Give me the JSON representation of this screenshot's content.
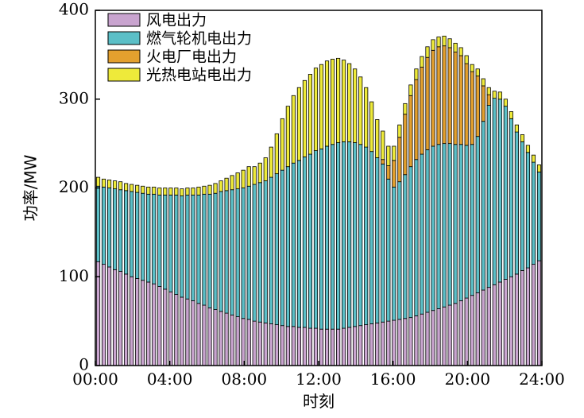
{
  "chart_data": {
    "type": "bar",
    "stacked": true,
    "xlabel": "时刻",
    "ylabel": "功率/MW",
    "ylim": [
      0,
      400
    ],
    "yticks": [
      0,
      100,
      200,
      300,
      400
    ],
    "xticks": [
      "00:00",
      "04:00",
      "08:00",
      "12:00",
      "16:00",
      "20:00",
      "24:00"
    ],
    "legend_position": "top-left",
    "x_interval_minutes": 15,
    "series": [
      {
        "name": "风电出力",
        "color": "#c9a4cf",
        "values": [
          117.0,
          114.0,
          111.0,
          108.0,
          106.0,
          103.0,
          100.0,
          98.0,
          96.0,
          94.0,
          92.0,
          89.0,
          86.0,
          83.0,
          80.0,
          77.0,
          75.0,
          73.0,
          70.0,
          68.0,
          65.0,
          63.0,
          61.0,
          59.0,
          57.0,
          55.0,
          53.0,
          52.0,
          50.0,
          49.0,
          48.0,
          47.0,
          46.0,
          45.0,
          44.0,
          44.0,
          43.0,
          43.0,
          42.0,
          42.0,
          41.0,
          41.0,
          41.0,
          41.0,
          42.0,
          43.0,
          44.0,
          45.0,
          46.0,
          47.0,
          48.0,
          49.0,
          50.0,
          51.0,
          52.0,
          53.0,
          54.0,
          56.0,
          58.0,
          60.0,
          62.0,
          64.0,
          66.0,
          68.0,
          70.0,
          73.0,
          76.0,
          79.0,
          82.0,
          85.0,
          88.0,
          91.0,
          94.0,
          97.0,
          100.0,
          103.0,
          107.0,
          110.0,
          114.0,
          118.0
        ]
      },
      {
        "name": "燃气轮机电出力",
        "color": "#5bbfc7",
        "values": [
          85.0,
          87.0,
          89.0,
          91.0,
          92.0,
          94.0,
          96.0,
          97.0,
          98.0,
          99.0,
          101.0,
          103.0,
          106.0,
          109.0,
          112.0,
          114.0,
          117.0,
          119.0,
          122.0,
          125.0,
          128.0,
          131.0,
          135.0,
          138.0,
          141.0,
          144.0,
          147.0,
          150.0,
          154.0,
          157.0,
          160.0,
          165.0,
          170.0,
          175.0,
          180.0,
          184.0,
          188.0,
          192.0,
          196.0,
          200.0,
          203.0,
          206.0,
          208.0,
          210.0,
          210.0,
          209.0,
          207.0,
          204.0,
          200.0,
          194.0,
          186.0,
          178.0,
          160.0,
          150.0,
          155.0,
          162.0,
          170.0,
          176.0,
          180.0,
          183.0,
          185.0,
          185.0,
          184.0,
          182.0,
          179.0,
          176.0,
          172.0,
          170.0,
          176.0,
          190.0,
          205.0,
          210.0,
          206.0,
          195.0,
          178.0,
          160.0,
          145.0,
          130.0,
          115.0,
          100.0
        ]
      },
      {
        "name": "火电厂电出力",
        "color": "#e3a02e",
        "values": [
          0.0,
          0.0,
          0.0,
          0.0,
          0.0,
          0.0,
          0.0,
          0.0,
          0.0,
          0.0,
          0.0,
          0.0,
          0.0,
          0.0,
          0.0,
          0.0,
          0.0,
          0.0,
          0.0,
          0.0,
          0.0,
          0.0,
          0.0,
          0.0,
          0.0,
          0.0,
          0.0,
          0.0,
          0.0,
          0.0,
          0.0,
          0.0,
          0.0,
          0.0,
          0.0,
          0.0,
          0.0,
          0.0,
          0.0,
          0.0,
          0.0,
          0.0,
          0.0,
          0.0,
          0.0,
          0.0,
          0.0,
          0.0,
          0.0,
          0.0,
          0.0,
          5.0,
          15.0,
          30.0,
          50.0,
          68.0,
          80.0,
          90.0,
          98.0,
          104.0,
          108.0,
          110.0,
          110.0,
          108.0,
          104.0,
          100.0,
          92.0,
          82.0,
          68.0,
          40.0,
          12.0,
          0.0,
          0.0,
          0.0,
          0.0,
          0.0,
          0.0,
          0.0,
          0.0,
          0.0
        ]
      },
      {
        "name": "光热电站电出力",
        "color": "#eeea3a",
        "values": [
          10.0,
          9.0,
          9.0,
          9.0,
          9.0,
          8.0,
          8.0,
          8.0,
          8.0,
          8.0,
          8.0,
          8.0,
          8.0,
          8.0,
          8.0,
          8.0,
          8.0,
          8.0,
          9.0,
          9.0,
          10.0,
          11.0,
          12.0,
          14.0,
          16.0,
          18.0,
          20.0,
          22.0,
          20.0,
          22.0,
          26.0,
          34.0,
          45.0,
          58.0,
          68.0,
          76.0,
          82.0,
          86.0,
          90.0,
          93.0,
          95.0,
          96.0,
          96.0,
          95.0,
          92.0,
          88.0,
          83.0,
          76.0,
          67.0,
          56.0,
          43.0,
          32.0,
          22.0,
          16.0,
          14.0,
          12.0,
          12.0,
          12.0,
          12.0,
          12.0,
          12.0,
          11.0,
          11.0,
          10.0,
          10.0,
          9.0,
          9.0,
          8.0,
          8.0,
          8.0,
          8.0,
          8.0,
          8.0,
          8.0,
          8.0,
          8.0,
          8.0,
          8.0,
          8.0,
          8.0
        ]
      }
    ]
  }
}
